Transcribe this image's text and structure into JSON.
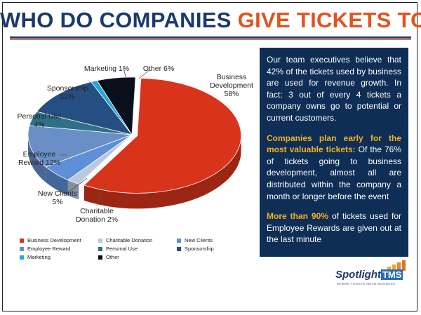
{
  "title": {
    "part1": "WHO DO COMPANIES",
    "part2": "GIVE TICKETS TO?"
  },
  "chart_data": {
    "type": "pie",
    "title": "",
    "slices": [
      {
        "name": "Business Development",
        "label": "Business\nDevelopment\n58%",
        "value": 58,
        "color": "#d8341c"
      },
      {
        "name": "Charitable Donation",
        "label": "Charitable\nDonation 2%",
        "value": 2,
        "color": "#b8c8de"
      },
      {
        "name": "New Clients",
        "label": "New Clients\n5%",
        "value": 5,
        "color": "#5f8fd6"
      },
      {
        "name": "Employee Reward",
        "label": "Employee\nReward 12%",
        "value": 12,
        "color": "#6a8fc6"
      },
      {
        "name": "Personal Use",
        "label": "Personal Use\n4%",
        "value": 4,
        "color": "#2f6f87"
      },
      {
        "name": "Sponsorship",
        "label": "Sponsorship\n12%",
        "value": 12,
        "color": "#254f82"
      },
      {
        "name": "Marketing",
        "label": "Marketing 1%",
        "value": 1,
        "color": "#27a6dc"
      },
      {
        "name": "Other",
        "label": "Other 6%",
        "value": 6,
        "color": "#0a0f1c"
      }
    ],
    "legend": {
      "placement": "bottom",
      "items": [
        {
          "label": "Business Development",
          "color": "#d8341c"
        },
        {
          "label": "Charitable Donation",
          "color": "#b8c8de"
        },
        {
          "label": "New Clients",
          "color": "#5f8fd6"
        },
        {
          "label": "Employee Reward",
          "color": "#6a8fc6"
        },
        {
          "label": "Personal Use",
          "color": "#2f6f87"
        },
        {
          "label": "Sponsorship",
          "color": "#254f82"
        },
        {
          "label": "Marketing",
          "color": "#27a6dc"
        },
        {
          "label": "Other",
          "color": "#0a0f1c"
        }
      ]
    }
  },
  "panel": {
    "p1": "Our team executives believe that 42% of the tickets used by business are used for revenue growth. In fact: 3 out of every 4 tickets a company owns go to potential or current customers.",
    "p2_highlight": "Companies plan early for the most valuable tickets:",
    "p2_rest": " Of the 76% of tickets going to business development, almost all are distributed within the company a month or longer before the event",
    "p3_highlight": "More than 90%",
    "p3_rest": " of tickets used for Employee Rewards are given out at the last minute"
  },
  "logo": {
    "word": "Spotlight",
    "tms": "TMS",
    "tagline": "WHERE TICKETS MEAN BUSINESS"
  },
  "colors": {
    "title_blue": "#1b3a6b",
    "title_orange": "#e0541f",
    "panel_bg": "#0e2e55",
    "highlight": "#f2b320"
  }
}
